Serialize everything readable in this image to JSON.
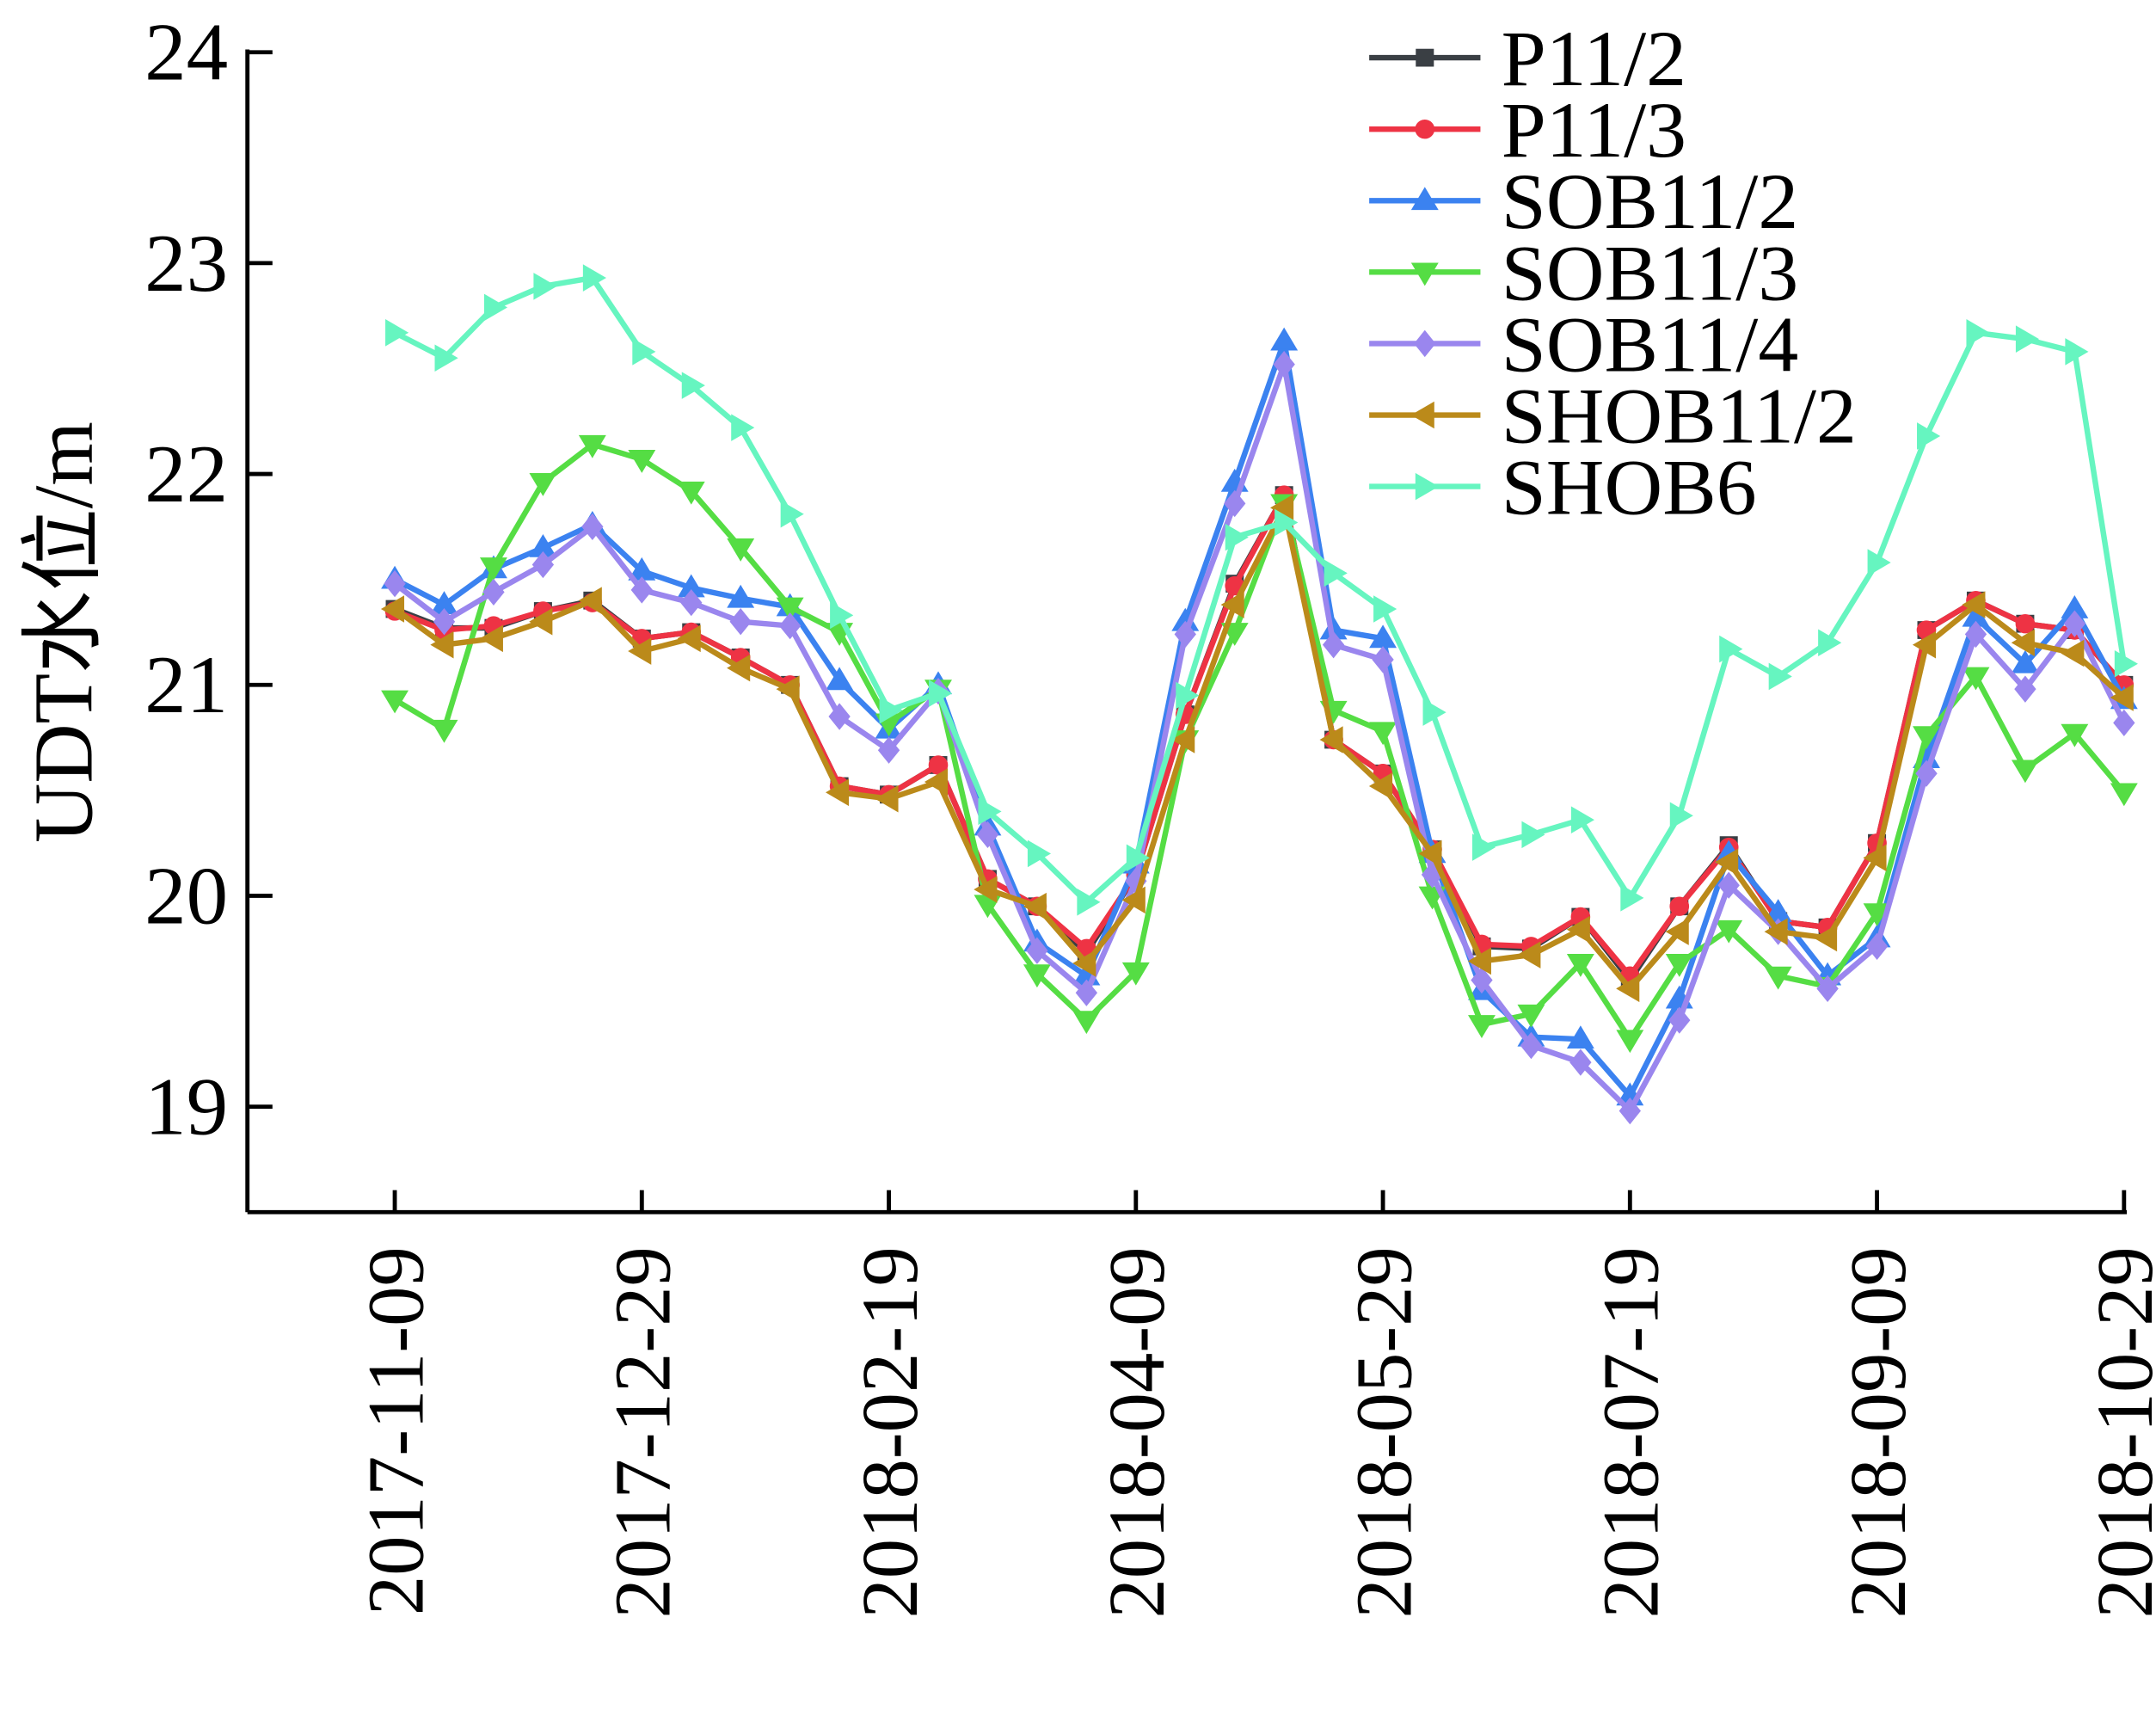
{
  "chart_data": {
    "type": "line",
    "ylabel": "UDT水位/m",
    "categories": [
      "2017-11-09",
      null,
      null,
      null,
      null,
      "2017-12-29",
      null,
      null,
      null,
      null,
      "2018-02-19",
      null,
      null,
      null,
      null,
      "2018-04-09",
      null,
      null,
      null,
      null,
      "2018-05-29",
      null,
      null,
      null,
      null,
      "2018-07-19",
      null,
      null,
      null,
      null,
      "2018-09-09",
      null,
      null,
      null,
      null,
      "2018-10-29"
    ],
    "ylim": [
      18.5,
      24
    ],
    "yticks": [
      19,
      20,
      21,
      22,
      23,
      24
    ],
    "legend": "upper right",
    "series": [
      {
        "name": "P11/2",
        "color": "#3a3f44",
        "marker": "square",
        "values": [
          21.36,
          21.27,
          21.27,
          21.35,
          21.4,
          21.22,
          21.25,
          21.13,
          21.0,
          20.52,
          20.48,
          20.62,
          20.08,
          19.95,
          19.73,
          20.1,
          20.86,
          21.48,
          21.9,
          20.74,
          20.58,
          20.22,
          19.76,
          19.75,
          19.9,
          19.6,
          19.95,
          20.24,
          19.88,
          19.85,
          20.25,
          21.26,
          21.4,
          21.29,
          21.26,
          21.0
        ]
      },
      {
        "name": "P11/3",
        "color": "#ee3344",
        "marker": "circle",
        "values": [
          21.35,
          21.26,
          21.28,
          21.35,
          21.39,
          21.22,
          21.25,
          21.13,
          21.0,
          20.52,
          20.48,
          20.62,
          20.08,
          19.95,
          19.75,
          20.1,
          20.86,
          21.47,
          21.9,
          20.74,
          20.58,
          20.22,
          19.77,
          19.76,
          19.9,
          19.62,
          19.95,
          20.23,
          19.88,
          19.85,
          20.25,
          21.26,
          21.4,
          21.29,
          21.26,
          21.0
        ]
      },
      {
        "name": "SOB11/2",
        "color": "#3b82f0",
        "marker": "triangle-up",
        "values": [
          21.5,
          21.38,
          21.55,
          21.65,
          21.76,
          21.54,
          21.46,
          21.41,
          21.37,
          21.02,
          20.79,
          21.0,
          20.33,
          19.78,
          19.62,
          20.15,
          21.3,
          21.96,
          22.63,
          21.26,
          21.22,
          20.2,
          19.55,
          19.33,
          19.32,
          19.05,
          19.51,
          20.2,
          19.92,
          19.62,
          19.8,
          20.65,
          21.32,
          21.1,
          21.36,
          20.93
        ]
      },
      {
        "name": "SOB11/3",
        "color": "#55dd44",
        "marker": "triangle-down",
        "values": [
          20.93,
          20.79,
          21.56,
          21.96,
          22.14,
          22.07,
          21.92,
          21.65,
          21.37,
          21.25,
          20.82,
          20.98,
          19.96,
          19.63,
          19.41,
          19.64,
          20.74,
          21.25,
          21.86,
          20.88,
          20.78,
          20.0,
          19.39,
          19.44,
          19.68,
          19.32,
          19.68,
          19.84,
          19.62,
          19.57,
          19.92,
          20.76,
          21.04,
          20.6,
          20.77,
          20.49
        ]
      },
      {
        "name": "SOB11/4",
        "color": "#9a86ee",
        "marker": "diamond",
        "values": [
          21.48,
          21.3,
          21.44,
          21.57,
          21.75,
          21.45,
          21.39,
          21.3,
          21.28,
          20.85,
          20.69,
          20.97,
          20.29,
          19.74,
          19.54,
          20.07,
          21.24,
          21.86,
          22.52,
          21.19,
          21.12,
          20.1,
          19.6,
          19.29,
          19.21,
          18.98,
          19.41,
          20.05,
          19.83,
          19.56,
          19.76,
          20.58,
          21.24,
          20.98,
          21.29,
          20.82
        ]
      },
      {
        "name": "SHOB11/2",
        "color": "#bb8a1a",
        "marker": "triangle-left",
        "values": [
          21.36,
          21.19,
          21.22,
          21.3,
          21.4,
          21.16,
          21.22,
          21.08,
          20.98,
          20.49,
          20.46,
          20.54,
          20.03,
          19.95,
          19.68,
          19.98,
          20.74,
          21.38,
          21.84,
          20.74,
          20.52,
          20.2,
          19.69,
          19.72,
          19.84,
          19.56,
          19.83,
          20.16,
          19.83,
          19.8,
          20.18,
          21.19,
          21.38,
          21.2,
          21.15,
          20.94
        ]
      },
      {
        "name": "SHOB6",
        "color": "#66f5c0",
        "marker": "triangle-right",
        "values": [
          22.67,
          22.55,
          22.79,
          22.89,
          22.93,
          22.58,
          22.42,
          22.22,
          21.81,
          21.33,
          20.88,
          20.96,
          20.4,
          20.2,
          19.97,
          20.18,
          20.95,
          21.7,
          21.77,
          21.53,
          21.36,
          20.87,
          20.23,
          20.29,
          20.36,
          19.99,
          20.38,
          21.17,
          21.04,
          21.2,
          21.58,
          22.18,
          22.67,
          22.64,
          22.58,
          21.1
        ]
      }
    ]
  }
}
